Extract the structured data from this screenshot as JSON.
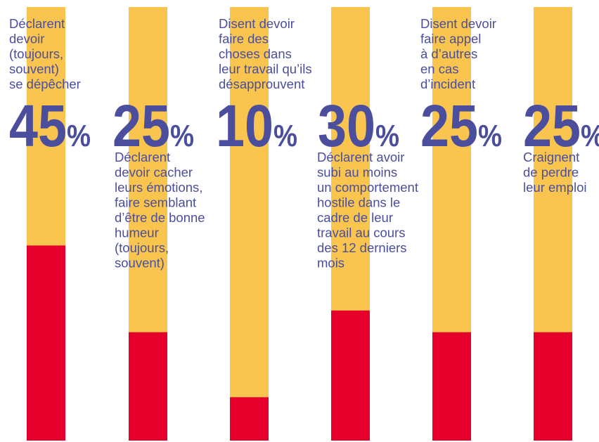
{
  "chart_data": {
    "type": "bar",
    "orientation": "vertical",
    "stacked": true,
    "ylim": [
      0,
      100
    ],
    "unit": "%",
    "colors": {
      "value": "#e4002b",
      "remainder": "#f9c54e",
      "text": "#4a4e9c"
    },
    "categories": [
      "Déclarent devoir (toujours, souvent) se dépêcher",
      "Déclarent devoir cacher leurs émotions, faire semblant d’être de bonne humeur (toujours, souvent)",
      "Disent devoir faire des choses dans leur travail qu’ils désapprouvent",
      "Déclarent avoir subi au moins un comportement hostile dans le cadre de leur travail au cours des 12 derniers mois",
      "Disent devoir faire appel à d’autres en cas d’incident",
      "Craignent de perdre leur emploi"
    ],
    "values": [
      45,
      25,
      10,
      30,
      25,
      25
    ],
    "labels": [
      "45",
      "25",
      "10",
      "30",
      "25",
      "25"
    ],
    "percent_sign": "%",
    "description_lines": [
      [
        "Déclarent",
        "devoir",
        "(toujours,",
        "souvent)",
        "se dépêcher"
      ],
      [
        "Déclarent",
        "devoir cacher",
        "leurs émotions,",
        "faire semblant",
        "d’être de bonne",
        "humeur",
        "(toujours,",
        "souvent)"
      ],
      [
        "Disent devoir",
        "faire des",
        "choses dans",
        "leur travail qu’ils",
        "désapprouvent"
      ],
      [
        "Déclarent avoir",
        "subi au moins",
        "un comportement",
        "hostile dans le",
        "cadre de leur",
        "travail au cours",
        "des 12 derniers",
        "mois"
      ],
      [
        "Disent devoir",
        "faire appel",
        "à d’autres",
        "en cas",
        "d’incident"
      ],
      [
        "Craignent",
        "de perdre",
        "leur emploi"
      ]
    ]
  }
}
